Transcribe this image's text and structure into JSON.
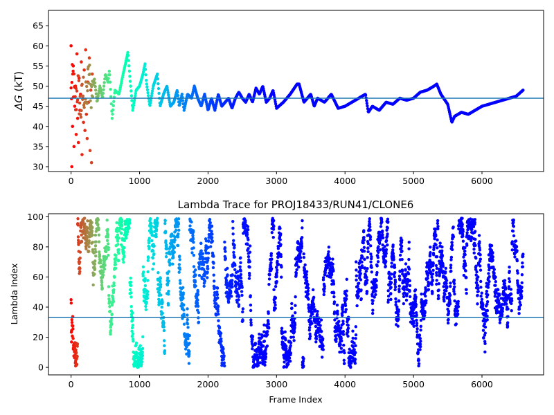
{
  "chart_data": [
    {
      "type": "scatter",
      "title": "",
      "xlabel": "",
      "ylabel_symbol": "ΔG",
      "ylabel_unit": " (kT)",
      "xlim": [
        -330,
        6900
      ],
      "ylim": [
        28.8,
        68.8
      ],
      "xticks": [
        0,
        1000,
        2000,
        3000,
        4000,
        5000,
        6000
      ],
      "yticks": [
        30,
        35,
        40,
        45,
        50,
        55,
        60,
        65
      ],
      "grid": false,
      "colormap": "rainbow",
      "reference_line": {
        "y": 47.0,
        "color": "#1f77b4"
      },
      "trace_keypoints": {
        "x": [
          0,
          30,
          60,
          100,
          140,
          180,
          220,
          260,
          300,
          340,
          380,
          420,
          460,
          500,
          540,
          560,
          600,
          640,
          700,
          760,
          800,
          830,
          860,
          900,
          950,
          1000,
          1050,
          1080,
          1100,
          1150,
          1200,
          1260,
          1300,
          1350,
          1400,
          1450,
          1500,
          1550,
          1580,
          1620,
          1650,
          1700,
          1760,
          1800,
          1850,
          1900,
          1950,
          2000,
          2050,
          2100,
          2150,
          2200,
          2250,
          2300,
          2350,
          2400,
          2450,
          2500,
          2550,
          2600,
          2650,
          2700,
          2750,
          2800,
          2850,
          2900,
          2950,
          3000,
          3100,
          3200,
          3300,
          3330,
          3400,
          3500,
          3550,
          3600,
          3700,
          3800,
          3900,
          4000,
          4100,
          4200,
          4300,
          4340,
          4400,
          4500,
          4600,
          4700,
          4800,
          4900,
          5000,
          5100,
          5200,
          5300,
          5340,
          5400,
          5500,
          5560,
          5600,
          5700,
          5800,
          5900,
          6000,
          6100,
          6200,
          6300,
          6400,
          6500,
          6600
        ],
        "y": [
          48,
          52,
          45,
          50,
          44,
          49,
          46,
          53,
          48,
          52,
          46,
          50,
          47,
          53,
          51,
          54,
          42,
          49,
          48,
          53,
          56,
          58.5,
          52,
          44,
          49,
          50,
          53,
          55.5,
          51,
          45,
          50,
          53,
          45,
          48,
          50,
          45,
          46,
          49,
          45,
          48,
          44,
          48,
          47,
          50,
          47,
          45,
          48,
          44,
          47,
          44,
          48,
          45,
          46,
          47,
          44.5,
          47,
          48.5,
          47,
          46,
          48,
          46,
          49.5,
          48,
          50,
          46,
          47,
          49,
          44.5,
          46,
          48,
          50.5,
          50.5,
          46,
          48,
          45,
          47,
          46,
          48,
          44.5,
          45,
          46,
          47,
          48,
          43.5,
          45,
          44,
          46,
          45.5,
          47,
          46.5,
          47,
          48.5,
          49,
          50,
          50.5,
          48,
          45.5,
          41,
          42.5,
          43.5,
          43,
          44,
          45,
          45.5,
          46,
          46.5,
          47,
          47.5,
          49
        ],
        "early_scatter_y": [
          60,
          30,
          40,
          55,
          35,
          45,
          50,
          38,
          58,
          42,
          36,
          52,
          44,
          48,
          56,
          33,
          47,
          41,
          54,
          39,
          59,
          43,
          37,
          51,
          46,
          57,
          34,
          49,
          31,
          53
        ]
      }
    },
    {
      "type": "scatter",
      "title": "Lambda Trace for PROJ18433/RUN41/CLONE6",
      "xlabel": "Frame Index",
      "ylabel": "Lambda Index",
      "xlim": [
        -330,
        6900
      ],
      "ylim": [
        -5,
        102
      ],
      "xticks": [
        0,
        1000,
        2000,
        3000,
        4000,
        5000,
        6000
      ],
      "yticks": [
        0,
        20,
        40,
        60,
        80,
        100
      ],
      "grid": false,
      "colormap": "rainbow",
      "reference_line": {
        "y": 33,
        "color": "#1f77b4"
      },
      "n_frames": 6600,
      "lambda_range": [
        0,
        99
      ],
      "purple_start_frame": 3000
    }
  ]
}
